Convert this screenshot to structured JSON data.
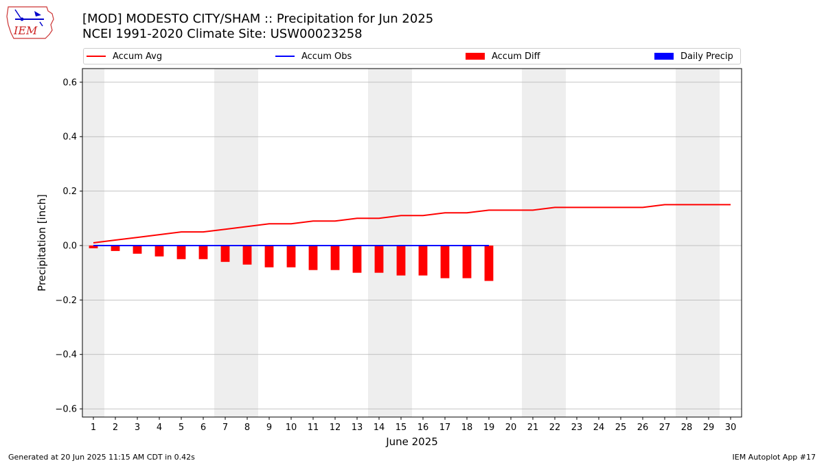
{
  "header": {
    "title_line1": "[MOD] MODESTO CITY/SHAM :: Precipitation for Jun 2025",
    "title_line2": "NCEI 1991-2020 Climate Site: USW00023258",
    "logo_text": "IEM"
  },
  "footer": {
    "generated": "Generated at 20 Jun 2025 11:15 AM CDT in 0.42s",
    "app": "IEM Autoplot App #17"
  },
  "colors": {
    "accum_avg": "#ff0000",
    "accum_obs": "#0000ff",
    "accum_diff": "#ff0000",
    "daily_precip": "#0000ff",
    "weekend_band": "#eeeeee",
    "grid": "#b0b0b0"
  },
  "chart_data": {
    "type": "line",
    "xlabel": "June 2025",
    "ylabel": "Precipitation [inch]",
    "x": [
      1,
      2,
      3,
      4,
      5,
      6,
      7,
      8,
      9,
      10,
      11,
      12,
      13,
      14,
      15,
      16,
      17,
      18,
      19,
      20,
      21,
      22,
      23,
      24,
      25,
      26,
      27,
      28,
      29,
      30
    ],
    "xlim": [
      0.5,
      30.5
    ],
    "ylim": [
      -0.63,
      0.65
    ],
    "yticks": [
      -0.6,
      -0.4,
      -0.2,
      0.0,
      0.2,
      0.4,
      0.6
    ],
    "ytick_labels": [
      "−0.6",
      "−0.4",
      "−0.2",
      "0.0",
      "0.2",
      "0.4",
      "0.6"
    ],
    "grid": "horizontal",
    "legend": "top",
    "weekend_days": [
      1,
      7,
      8,
      14,
      15,
      21,
      22,
      28,
      29
    ],
    "series": [
      {
        "name": "Accum Avg",
        "kind": "line",
        "x": [
          1,
          2,
          3,
          4,
          5,
          6,
          7,
          8,
          9,
          10,
          11,
          12,
          13,
          14,
          15,
          16,
          17,
          18,
          19,
          20,
          21,
          22,
          23,
          24,
          25,
          26,
          27,
          28,
          29,
          30
        ],
        "values": [
          0.01,
          0.02,
          0.03,
          0.04,
          0.05,
          0.05,
          0.06,
          0.07,
          0.08,
          0.08,
          0.09,
          0.09,
          0.1,
          0.1,
          0.11,
          0.11,
          0.12,
          0.12,
          0.13,
          0.13,
          0.13,
          0.14,
          0.14,
          0.14,
          0.14,
          0.14,
          0.15,
          0.15,
          0.15,
          0.15
        ]
      },
      {
        "name": "Accum Obs",
        "kind": "line",
        "x": [
          1,
          2,
          3,
          4,
          5,
          6,
          7,
          8,
          9,
          10,
          11,
          12,
          13,
          14,
          15,
          16,
          17,
          18,
          19
        ],
        "values": [
          0,
          0,
          0,
          0,
          0,
          0,
          0,
          0,
          0,
          0,
          0,
          0,
          0,
          0,
          0,
          0,
          0,
          0,
          0
        ]
      },
      {
        "name": "Accum Diff",
        "kind": "bar",
        "x": [
          1,
          2,
          3,
          4,
          5,
          6,
          7,
          8,
          9,
          10,
          11,
          12,
          13,
          14,
          15,
          16,
          17,
          18,
          19
        ],
        "values": [
          -0.01,
          -0.02,
          -0.03,
          -0.04,
          -0.05,
          -0.05,
          -0.06,
          -0.07,
          -0.08,
          -0.08,
          -0.09,
          -0.09,
          -0.1,
          -0.1,
          -0.11,
          -0.11,
          -0.12,
          -0.12,
          -0.13
        ]
      },
      {
        "name": "Daily Precip",
        "kind": "bar",
        "x": [
          1,
          2,
          3,
          4,
          5,
          6,
          7,
          8,
          9,
          10,
          11,
          12,
          13,
          14,
          15,
          16,
          17,
          18,
          19
        ],
        "values": [
          0,
          0,
          0,
          0,
          0,
          0,
          0,
          0,
          0,
          0,
          0,
          0,
          0,
          0,
          0,
          0,
          0,
          0,
          0
        ]
      }
    ]
  }
}
